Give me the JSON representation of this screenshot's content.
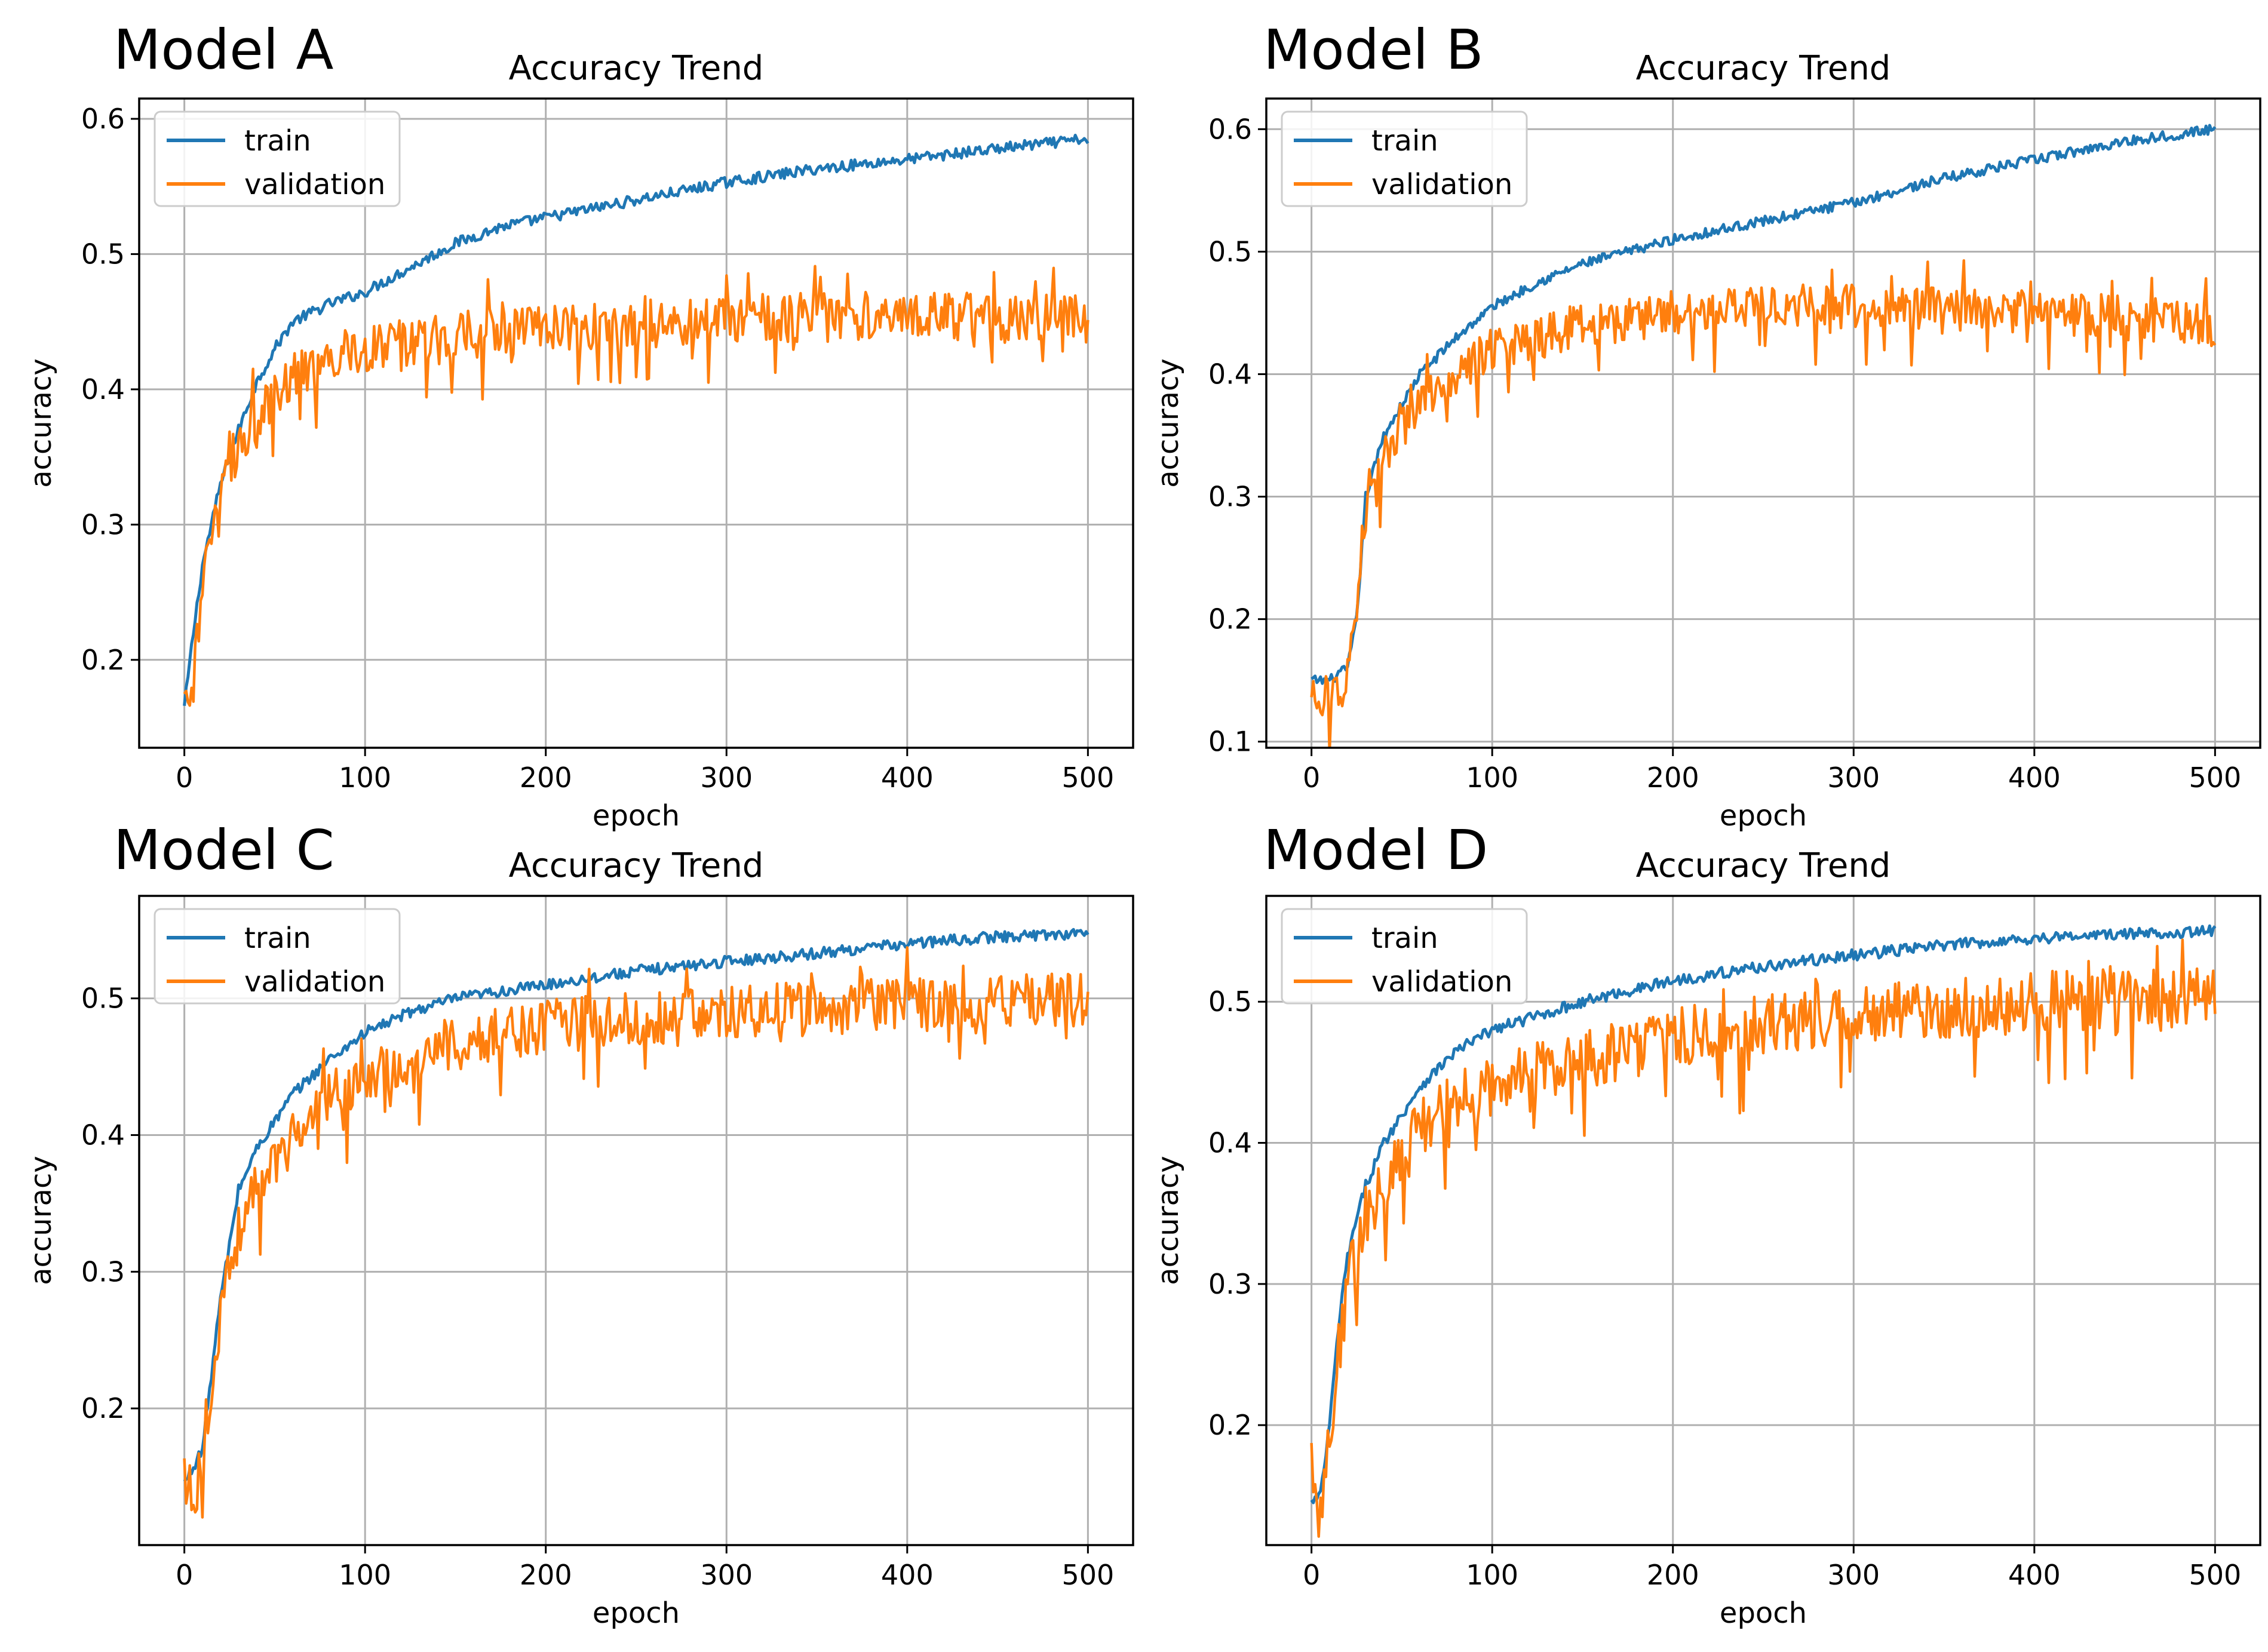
{
  "figure": {
    "layout": "2x2 grid"
  },
  "colors": {
    "train": "#1f77b4",
    "validation": "#ff7f0e",
    "grid": "#b0b0b0",
    "axes": "#000000"
  },
  "chart_data": [
    {
      "panel_label": "Model A",
      "type": "line",
      "title": "Accuracy Trend",
      "xlabel": "epoch",
      "ylabel": "accuracy",
      "xlim": [
        -25,
        525
      ],
      "ylim": [
        0.135,
        0.615
      ],
      "xticks": [
        0,
        100,
        200,
        300,
        400,
        500
      ],
      "yticks": [
        0.2,
        0.3,
        0.4,
        0.5,
        0.6
      ],
      "grid": true,
      "legend": "upper-left",
      "series": [
        {
          "name": "train",
          "color": "#1f77b4",
          "keypoints": [
            [
              0,
              0.165
            ],
            [
              5,
              0.22
            ],
            [
              10,
              0.27
            ],
            [
              20,
              0.33
            ],
            [
              30,
              0.37
            ],
            [
              40,
              0.405
            ],
            [
              50,
              0.43
            ],
            [
              60,
              0.45
            ],
            [
              80,
              0.463
            ],
            [
              100,
              0.472
            ],
            [
              125,
              0.49
            ],
            [
              150,
              0.508
            ],
            [
              175,
              0.52
            ],
            [
              200,
              0.527
            ],
            [
              250,
              0.54
            ],
            [
              300,
              0.553
            ],
            [
              350,
              0.563
            ],
            [
              400,
              0.57
            ],
            [
              450,
              0.578
            ],
            [
              500,
              0.585
            ]
          ],
          "noise": 0.004
        },
        {
          "name": "validation",
          "color": "#ff7f0e",
          "keypoints": [
            [
              0,
              0.17
            ],
            [
              3,
              0.155
            ],
            [
              10,
              0.26
            ],
            [
              20,
              0.33
            ],
            [
              30,
              0.36
            ],
            [
              40,
              0.38
            ],
            [
              60,
              0.41
            ],
            [
              80,
              0.425
            ],
            [
              100,
              0.43
            ],
            [
              150,
              0.44
            ],
            [
              200,
              0.445
            ],
            [
              300,
              0.452
            ],
            [
              400,
              0.455
            ],
            [
              500,
              0.452
            ]
          ],
          "noise": 0.018
        }
      ]
    },
    {
      "panel_label": "Model B",
      "type": "line",
      "title": "Accuracy Trend",
      "xlabel": "epoch",
      "ylabel": "accuracy",
      "xlim": [
        -25,
        525
      ],
      "ylim": [
        0.095,
        0.625
      ],
      "xticks": [
        0,
        100,
        200,
        300,
        400,
        500
      ],
      "yticks": [
        0.1,
        0.2,
        0.3,
        0.4,
        0.5,
        0.6
      ],
      "grid": true,
      "legend": "upper-left",
      "series": [
        {
          "name": "train",
          "color": "#1f77b4",
          "keypoints": [
            [
              0,
              0.15
            ],
            [
              10,
              0.15
            ],
            [
              20,
              0.16
            ],
            [
              25,
              0.2
            ],
            [
              30,
              0.3
            ],
            [
              40,
              0.35
            ],
            [
              60,
              0.4
            ],
            [
              80,
              0.43
            ],
            [
              100,
              0.455
            ],
            [
              125,
              0.475
            ],
            [
              150,
              0.49
            ],
            [
              200,
              0.51
            ],
            [
              250,
              0.525
            ],
            [
              300,
              0.54
            ],
            [
              350,
              0.56
            ],
            [
              400,
              0.575
            ],
            [
              450,
              0.59
            ],
            [
              500,
              0.6
            ]
          ],
          "noise": 0.004
        },
        {
          "name": "validation",
          "color": "#ff7f0e",
          "keypoints": [
            [
              0,
              0.13
            ],
            [
              10,
              0.135
            ],
            [
              20,
              0.15
            ],
            [
              25,
              0.2
            ],
            [
              30,
              0.28
            ],
            [
              40,
              0.33
            ],
            [
              60,
              0.38
            ],
            [
              80,
              0.4
            ],
            [
              100,
              0.42
            ],
            [
              150,
              0.44
            ],
            [
              200,
              0.45
            ],
            [
              250,
              0.453
            ],
            [
              300,
              0.455
            ],
            [
              400,
              0.452
            ],
            [
              500,
              0.44
            ]
          ],
          "noise": 0.018
        }
      ]
    },
    {
      "panel_label": "Model C",
      "type": "line",
      "title": "Accuracy Trend",
      "xlabel": "epoch",
      "ylabel": "accuracy",
      "xlim": [
        -25,
        525
      ],
      "ylim": [
        0.1,
        0.575
      ],
      "xticks": [
        0,
        100,
        200,
        300,
        400,
        500
      ],
      "yticks": [
        0.2,
        0.3,
        0.4,
        0.5
      ],
      "grid": true,
      "legend": "upper-left",
      "series": [
        {
          "name": "train",
          "color": "#1f77b4",
          "keypoints": [
            [
              0,
              0.145
            ],
            [
              10,
              0.17
            ],
            [
              20,
              0.28
            ],
            [
              30,
              0.36
            ],
            [
              40,
              0.39
            ],
            [
              60,
              0.43
            ],
            [
              80,
              0.455
            ],
            [
              100,
              0.475
            ],
            [
              125,
              0.49
            ],
            [
              150,
              0.5
            ],
            [
              200,
              0.51
            ],
            [
              250,
              0.52
            ],
            [
              300,
              0.527
            ],
            [
              350,
              0.533
            ],
            [
              400,
              0.54
            ],
            [
              450,
              0.545
            ],
            [
              500,
              0.548
            ]
          ],
          "noise": 0.004
        },
        {
          "name": "validation",
          "color": "#ff7f0e",
          "keypoints": [
            [
              0,
              0.155
            ],
            [
              5,
              0.13
            ],
            [
              10,
              0.17
            ],
            [
              20,
              0.27
            ],
            [
              30,
              0.33
            ],
            [
              40,
              0.36
            ],
            [
              60,
              0.4
            ],
            [
              80,
              0.43
            ],
            [
              100,
              0.44
            ],
            [
              150,
              0.47
            ],
            [
              200,
              0.48
            ],
            [
              300,
              0.49
            ],
            [
              400,
              0.495
            ],
            [
              500,
              0.5
            ]
          ],
          "noise": 0.02
        }
      ]
    },
    {
      "panel_label": "Model D",
      "type": "line",
      "title": "Accuracy Trend",
      "xlabel": "epoch",
      "ylabel": "accuracy",
      "xlim": [
        -25,
        525
      ],
      "ylim": [
        0.115,
        0.575
      ],
      "xticks": [
        0,
        100,
        200,
        300,
        400,
        500
      ],
      "yticks": [
        0.2,
        0.3,
        0.4,
        0.5
      ],
      "grid": true,
      "legend": "upper-left",
      "series": [
        {
          "name": "train",
          "color": "#1f77b4",
          "keypoints": [
            [
              0,
              0.145
            ],
            [
              5,
              0.15
            ],
            [
              10,
              0.2
            ],
            [
              15,
              0.27
            ],
            [
              20,
              0.32
            ],
            [
              30,
              0.37
            ],
            [
              40,
              0.4
            ],
            [
              60,
              0.44
            ],
            [
              80,
              0.465
            ],
            [
              100,
              0.48
            ],
            [
              125,
              0.49
            ],
            [
              150,
              0.5
            ],
            [
              200,
              0.515
            ],
            [
              250,
              0.525
            ],
            [
              300,
              0.533
            ],
            [
              350,
              0.54
            ],
            [
              400,
              0.545
            ],
            [
              450,
              0.548
            ],
            [
              500,
              0.55
            ]
          ],
          "noise": 0.004
        },
        {
          "name": "validation",
          "color": "#ff7f0e",
          "keypoints": [
            [
              0,
              0.15
            ],
            [
              5,
              0.14
            ],
            [
              10,
              0.2
            ],
            [
              20,
              0.3
            ],
            [
              30,
              0.34
            ],
            [
              40,
              0.37
            ],
            [
              60,
              0.41
            ],
            [
              80,
              0.43
            ],
            [
              100,
              0.44
            ],
            [
              150,
              0.46
            ],
            [
              200,
              0.475
            ],
            [
              300,
              0.49
            ],
            [
              400,
              0.5
            ],
            [
              500,
              0.505
            ]
          ],
          "noise": 0.022
        }
      ]
    }
  ]
}
